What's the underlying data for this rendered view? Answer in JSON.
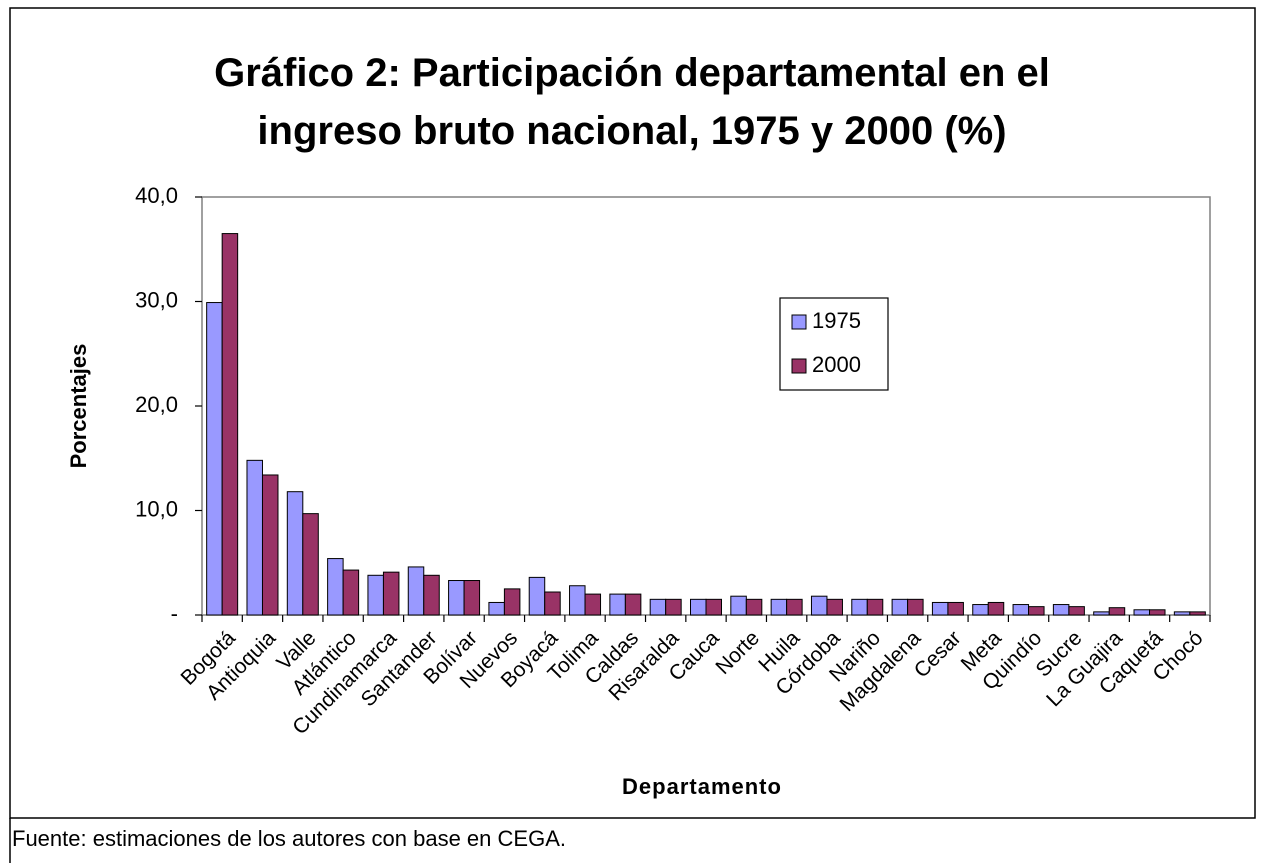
{
  "chart_data": {
    "type": "bar",
    "title": "Gráfico 2: Participación departamental en el ingreso bruto nacional, 1975 y 2000 (%)",
    "x_label": "Departamento",
    "y_label": "Porcentajes",
    "note": "Fuente: estimaciones de los autores con base en CEGA.",
    "categories": [
      "Bogotá",
      "Antioquia",
      "Valle",
      "Atlántico",
      "Cundinamarca",
      "Santander",
      "Bolívar",
      "Nuevos",
      "Boyacá",
      "Tolima",
      "Caldas",
      "Risaralda",
      "Cauca",
      "Norte",
      "Huila",
      "Córdoba",
      "Nariño",
      "Magdalena",
      "Cesar",
      "Meta",
      "Quindío",
      "Sucre",
      "La Guajira",
      "Caquetá",
      "Chocó"
    ],
    "series": [
      {
        "name": "1975",
        "color": "#9999ff",
        "values": [
          29.9,
          14.8,
          11.8,
          5.4,
          3.8,
          4.6,
          3.3,
          1.2,
          3.6,
          2.8,
          2.0,
          1.5,
          1.5,
          1.8,
          1.5,
          1.8,
          1.5,
          1.5,
          1.2,
          1.0,
          1.0,
          1.0,
          0.3,
          0.5,
          0.3
        ]
      },
      {
        "name": "2000",
        "color": "#993366",
        "values": [
          36.5,
          13.4,
          9.7,
          4.3,
          4.1,
          3.8,
          3.3,
          2.5,
          2.2,
          2.0,
          2.0,
          1.5,
          1.5,
          1.5,
          1.5,
          1.5,
          1.5,
          1.5,
          1.2,
          1.2,
          0.8,
          0.8,
          0.7,
          0.5,
          0.3
        ]
      }
    ],
    "ylim": [
      0,
      40
    ],
    "yticks": [
      {
        "value": 0,
        "label": "-"
      },
      {
        "value": 10,
        "label": "10,0"
      },
      {
        "value": 20,
        "label": "20,0"
      },
      {
        "value": 30,
        "label": "30,0"
      },
      {
        "value": 40,
        "label": "40,0"
      }
    ],
    "legend": "right"
  }
}
